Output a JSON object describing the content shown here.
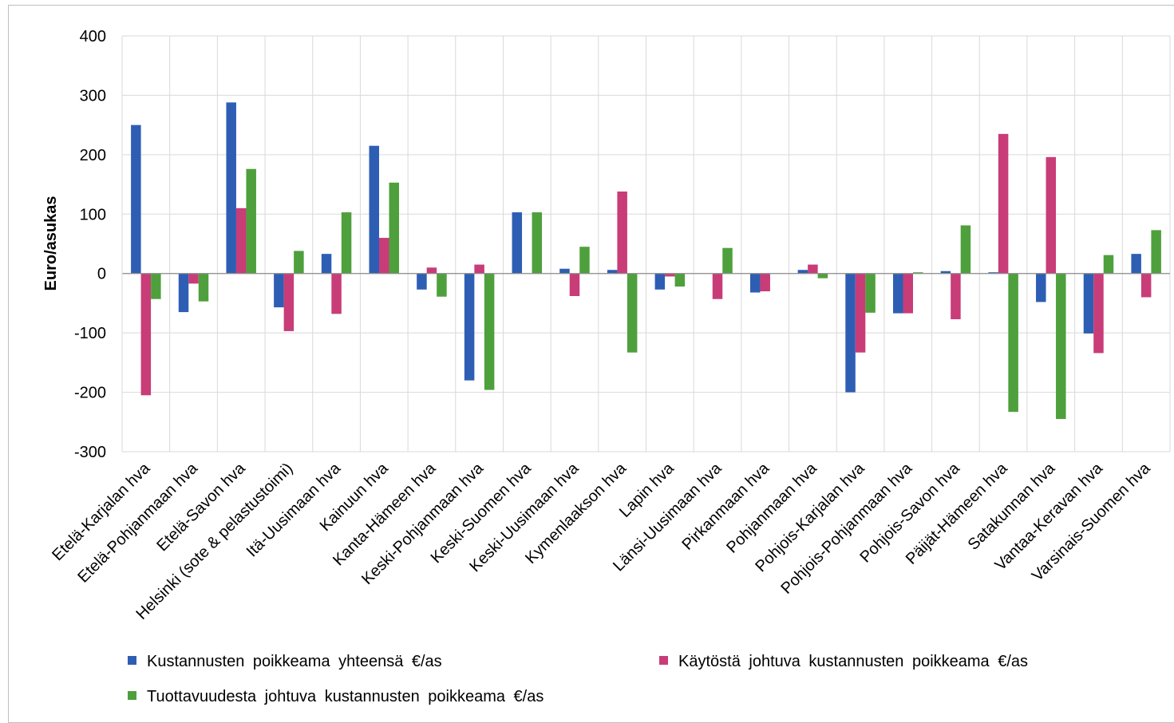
{
  "chart_data": {
    "type": "bar",
    "title": "",
    "xlabel": "",
    "ylabel": "Euro/asukas",
    "ylim": [
      -300,
      400
    ],
    "yticks": [
      400,
      300,
      200,
      100,
      0,
      -100,
      -200,
      -300
    ],
    "ytick_labels": [
      "400",
      "300",
      "200",
      "100",
      "0",
      "-100",
      "-200",
      "-300"
    ],
    "grid": true,
    "legend_position": "bottom",
    "categories": [
      "Etelä-Karjalan hva",
      "Etelä-Pohjanmaan hva",
      "Etelä-Savon hva",
      "Helsinki (sote & pelastustoimi)",
      "Itä-Uusimaan hva",
      "Kainuun hva",
      "Kanta-Hämeen hva",
      "Keski-Pohjanmaan hva",
      "Keski-Suomen hva",
      "Keski-Uusimaan hva",
      "Kymenlaakson hva",
      "Lapin hva",
      "Länsi-Uusimaan hva",
      "Pirkanmaan hva",
      "Pohjanmaan hva",
      "Pohjois-Karjalan hva",
      "Pohjois-Pohjanmaan hva",
      "Pohjois-Savon hva",
      "Päijät-Hämeen hva",
      "Satakunnan hva",
      "Vantaa-Keravan hva",
      "Varsinais-Suomen hva"
    ],
    "series": [
      {
        "name": "Kustannusten poikkeama yhteensä €/as",
        "color": "#2e5eb4",
        "values": [
          250,
          -65,
          288,
          -57,
          33,
          215,
          -27,
          -180,
          103,
          8,
          6,
          -27,
          0,
          -32,
          6,
          -200,
          -67,
          4,
          2,
          -48,
          -101,
          33
        ]
      },
      {
        "name": "Käytöstä johtuva kustannusten poikkeama €/as",
        "color": "#c83c78",
        "values": [
          -205,
          -17,
          110,
          -97,
          -68,
          60,
          10,
          15,
          0,
          -38,
          138,
          -5,
          -43,
          -30,
          15,
          -133,
          -67,
          -77,
          235,
          196,
          -134,
          -40
        ]
      },
      {
        "name": "Tuottavuudesta johtuva kustannusten poikkeama €/as",
        "color": "#4ea03c",
        "values": [
          -43,
          -47,
          176,
          38,
          103,
          153,
          -39,
          -196,
          103,
          45,
          -133,
          -22,
          43,
          0,
          -8,
          -66,
          2,
          81,
          -233,
          -245,
          31,
          73
        ]
      }
    ]
  }
}
